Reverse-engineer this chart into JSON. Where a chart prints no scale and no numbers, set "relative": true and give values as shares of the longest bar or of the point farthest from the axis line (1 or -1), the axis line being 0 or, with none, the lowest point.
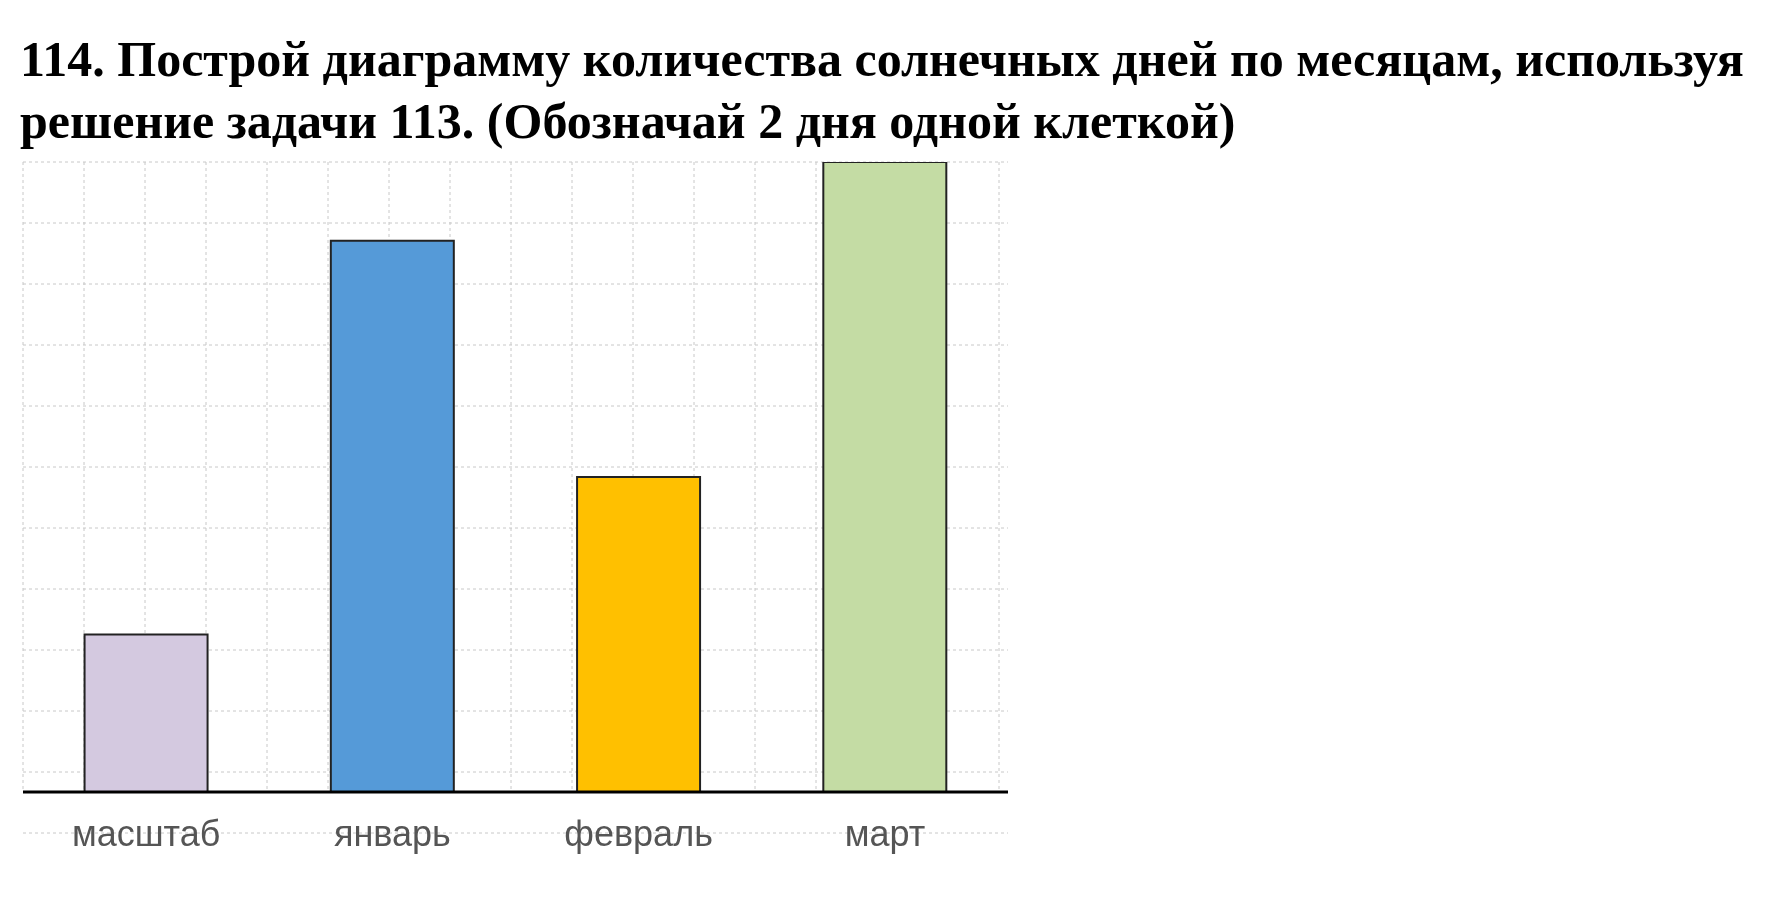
{
  "chart_data": {
    "type": "bar",
    "title": "114. Построй диаграмму количества солнечных дней по месяцам, используя решение задачи 113. (Обозначай 2 дня одной клеткой)",
    "categories": [
      "масштаб",
      "январь",
      "февраль",
      "март"
    ],
    "values": [
      0.25,
      0.875,
      0.5,
      1
    ],
    "colors": [
      "#d4c9e0",
      "#559ad8",
      "#ffc000",
      "#c4dca4"
    ],
    "relative": true,
    "grid": true
  }
}
